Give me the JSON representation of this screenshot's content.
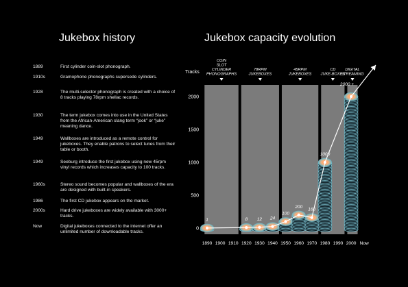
{
  "left": {
    "title": "Jukebox history",
    "timeline": [
      {
        "year": "1889",
        "text": "First cylinder coin-slot phonograph."
      },
      {
        "year": "1910s",
        "text": "Gramophone phonographs supersede cylinders."
      },
      {
        "year": "1928",
        "text": "The multi-selector phonograph is created with a choice of 8 tracks playing 78rpm shellac records."
      },
      {
        "year": "1930",
        "text": "The term jukebox comes into use in the United States from the African-American slang term “jook” or “juke” meaning dance."
      },
      {
        "year": "1949",
        "text": "Wallboxes are introduced as a remote control for jukeboxes. They enable patrons to select tunes from their table or booth."
      },
      {
        "year": "1949",
        "text": "Seeburg introduce the first jukebox using new 45rpm vinyl records which increases capacity to 100 tracks."
      },
      {
        "year": "1960s",
        "text": "Stereo sound becomes popular and wallboxes of the era are designed with built-in speakers."
      },
      {
        "year": "1986",
        "text": "The first CD jukebox appears on the market."
      },
      {
        "year": "2000s",
        "text": "Hard drive jukeboxes are widely available with 3000+ tracks."
      },
      {
        "year": "Now",
        "text": "Digital jukeboxes connected to the internet offer an unlimited number of downloadable tracks."
      }
    ]
  },
  "chart_data": {
    "type": "line",
    "title": "Jukebox capacity evolution",
    "ylabel": "Tracks",
    "ylim": [
      0,
      2000
    ],
    "yticks": [
      0,
      500,
      1000,
      1500,
      2000
    ],
    "xticks": [
      "1890",
      "1900",
      "1910",
      "1920",
      "1930",
      "1940",
      "1950",
      "1960",
      "1970",
      "1980",
      "1990",
      "2000",
      "Now"
    ],
    "points": [
      {
        "x": 1890,
        "y": 1,
        "label": "1"
      },
      {
        "x": 1920,
        "y": 8,
        "label": "8"
      },
      {
        "x": 1930,
        "y": 12,
        "label": "12"
      },
      {
        "x": 1940,
        "y": 24,
        "label": "24"
      },
      {
        "x": 1950,
        "y": 100,
        "label": "100"
      },
      {
        "x": 1960,
        "y": 200,
        "label": "200"
      },
      {
        "x": 1970,
        "y": 160,
        "label": "160"
      },
      {
        "x": 1980,
        "y": 1000,
        "label": "1000"
      },
      {
        "x": 2000,
        "y": 2000,
        "label": "2000 +"
      }
    ],
    "eras": [
      {
        "name": "COIN SLOT CYLINDER PHONOGRAPHS",
        "from": 1887,
        "to": 1915
      },
      {
        "name": "78RPM JUKEBOXES",
        "from": 1915,
        "to": 1946
      },
      {
        "name": "45RPM JUKEBOXES",
        "from": 1946,
        "to": 1976
      },
      {
        "name": "CD JUKE-BOXES",
        "from": 1976,
        "to": 1996
      },
      {
        "name": "DIGITAL STREAMING",
        "from": 1996,
        "to": 2006
      }
    ],
    "colors": {
      "era_bg": "#7b7b7b",
      "line": "#ffffff",
      "stack": "#7fc7d6",
      "accent": "#ff6a2a"
    }
  }
}
